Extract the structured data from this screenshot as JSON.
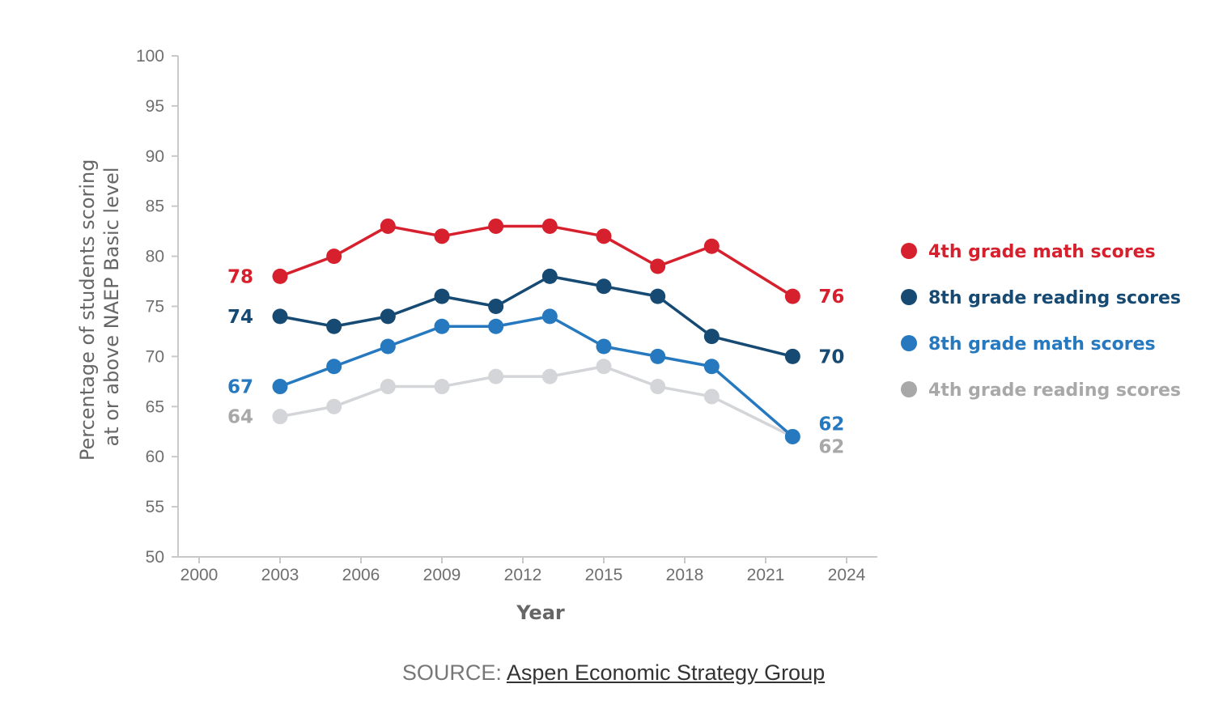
{
  "chart_data": {
    "type": "line",
    "title": "",
    "xlabel": "Year",
    "ylabel_lines": [
      "Percentage of students scoring",
      "at or above NAEP Basic level"
    ],
    "xlim": [
      2000,
      2024
    ],
    "ylim": [
      50,
      100
    ],
    "xticks": [
      "2000",
      "2003",
      "2006",
      "2009",
      "2012",
      "2015",
      "2018",
      "2021",
      "2024"
    ],
    "yticks": [
      "50",
      "55",
      "60",
      "65",
      "70",
      "75",
      "80",
      "85",
      "90",
      "95",
      "100"
    ],
    "grid": false,
    "legend_position": "right",
    "series": [
      {
        "name": "4th grade math scores",
        "color": "#d7202d",
        "x": [
          2003,
          2005,
          2007,
          2009,
          2011,
          2013,
          2015,
          2017,
          2019,
          2022
        ],
        "values": [
          78,
          80,
          83,
          82,
          83,
          83,
          82,
          79,
          81,
          76
        ],
        "start_label": "78",
        "end_label": "76"
      },
      {
        "name": "8th grade reading scores",
        "color": "#164a73",
        "x": [
          2003,
          2005,
          2007,
          2009,
          2011,
          2013,
          2015,
          2017,
          2019,
          2022
        ],
        "values": [
          74,
          73,
          74,
          76,
          75,
          78,
          77,
          76,
          72,
          70
        ],
        "start_label": "74",
        "end_label": "70"
      },
      {
        "name": "8th grade math scores",
        "color": "#2679bf",
        "x": [
          2003,
          2005,
          2007,
          2009,
          2011,
          2013,
          2015,
          2017,
          2019,
          2022
        ],
        "values": [
          67,
          69,
          71,
          73,
          73,
          74,
          71,
          70,
          69,
          62
        ],
        "start_label": "67",
        "end_label": "62"
      },
      {
        "name": "4th grade reading scores",
        "color": "#d3d5d8",
        "label_color": "#a8a8a8",
        "x": [
          2003,
          2005,
          2007,
          2009,
          2011,
          2013,
          2015,
          2017,
          2019,
          2022
        ],
        "values": [
          64,
          65,
          67,
          67,
          68,
          68,
          69,
          67,
          66,
          62
        ],
        "start_label": "64",
        "end_label": "62"
      }
    ]
  },
  "legend_dot_colors": [
    "#d7202d",
    "#164a73",
    "#2679bf",
    "#a8a8a8"
  ],
  "source": {
    "prefix": "SOURCE: ",
    "link_text": "Aspen Economic Strategy Group"
  }
}
